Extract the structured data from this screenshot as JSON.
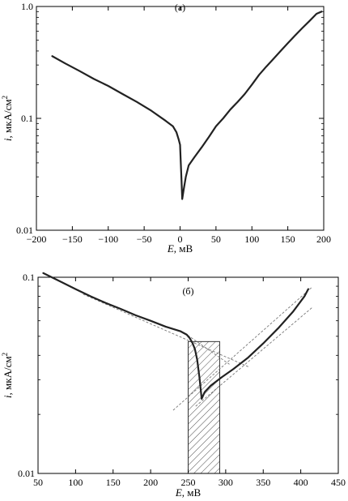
{
  "chart_data": [
    {
      "type": "line",
      "panel_label": "(а)",
      "xlabel_var": "E",
      "xlabel_unit": ", мВ",
      "ylabel_var": "i",
      "ylabel_unit": ", мкА/см",
      "ylabel_sup": "2",
      "y_scale": "log",
      "xlim": [
        -200,
        200
      ],
      "ylim": [
        0.01,
        1.0
      ],
      "x_ticks": [
        -200,
        -150,
        -100,
        -50,
        0,
        50,
        100,
        150,
        200
      ],
      "x_tick_labels": [
        "−200",
        "−150",
        "−100",
        "−50",
        "0",
        "50",
        "100",
        "150",
        "200"
      ],
      "y_ticks": [
        0.01,
        0.1,
        1.0
      ],
      "y_tick_labels": [
        "0.01",
        "0.1",
        "1.0"
      ],
      "series": [
        {
          "color": "#222222",
          "points": [
            [
              -178,
              0.36
            ],
            [
              -160,
              0.31
            ],
            [
              -140,
              0.265
            ],
            [
              -120,
              0.225
            ],
            [
              -100,
              0.195
            ],
            [
              -80,
              0.165
            ],
            [
              -60,
              0.14
            ],
            [
              -40,
              0.117
            ],
            [
              -20,
              0.095
            ],
            [
              -10,
              0.085
            ],
            [
              -5,
              0.075
            ],
            [
              -2,
              0.065
            ],
            [
              0,
              0.058
            ],
            [
              1,
              0.04
            ],
            [
              2,
              0.028
            ],
            [
              3,
              0.019
            ],
            [
              5,
              0.023
            ],
            [
              8,
              0.03
            ],
            [
              12,
              0.038
            ],
            [
              20,
              0.045
            ],
            [
              30,
              0.055
            ],
            [
              40,
              0.068
            ],
            [
              50,
              0.085
            ],
            [
              60,
              0.1
            ],
            [
              70,
              0.12
            ],
            [
              80,
              0.14
            ],
            [
              90,
              0.165
            ],
            [
              100,
              0.2
            ],
            [
              110,
              0.245
            ],
            [
              120,
              0.29
            ],
            [
              130,
              0.34
            ],
            [
              140,
              0.4
            ],
            [
              150,
              0.47
            ],
            [
              160,
              0.55
            ],
            [
              170,
              0.64
            ],
            [
              180,
              0.74
            ],
            [
              190,
              0.86
            ],
            [
              197,
              0.9
            ]
          ]
        }
      ]
    },
    {
      "type": "line",
      "panel_label": "(б)",
      "xlabel_var": "E",
      "xlabel_unit": ", мВ",
      "ylabel_var": "i",
      "ylabel_unit": ", мкА/см",
      "ylabel_sup": "2",
      "y_scale": "log",
      "xlim": [
        50,
        450
      ],
      "ylim": [
        0.01,
        0.1
      ],
      "x_ticks": [
        50,
        100,
        150,
        200,
        250,
        300,
        350,
        400,
        450
      ],
      "x_tick_labels": [
        "50",
        "100",
        "150",
        "200",
        "250",
        "300",
        "350",
        "400",
        "450"
      ],
      "y_ticks": [
        0.01,
        0.1
      ],
      "y_tick_labels": [
        "0.01",
        "0.1"
      ],
      "series": [
        {
          "color": "#222222",
          "points": [
            [
              57,
              0.105
            ],
            [
              80,
              0.095
            ],
            [
              100,
              0.087
            ],
            [
              120,
              0.08
            ],
            [
              140,
              0.074
            ],
            [
              160,
              0.069
            ],
            [
              180,
              0.064
            ],
            [
              200,
              0.06
            ],
            [
              220,
              0.056
            ],
            [
              240,
              0.053
            ],
            [
              248,
              0.051
            ],
            [
              252,
              0.049
            ],
            [
              256,
              0.046
            ],
            [
              259,
              0.043
            ],
            [
              262,
              0.038
            ],
            [
              265,
              0.031
            ],
            [
              268,
              0.024
            ],
            [
              272,
              0.026
            ],
            [
              280,
              0.028
            ],
            [
              295,
              0.031
            ],
            [
              310,
              0.034
            ],
            [
              330,
              0.039
            ],
            [
              350,
              0.046
            ],
            [
              370,
              0.055
            ],
            [
              390,
              0.067
            ],
            [
              405,
              0.08
            ],
            [
              410,
              0.087
            ]
          ]
        }
      ],
      "tangent_lines": [
        {
          "from": [
            110,
            0.082
          ],
          "to": [
            330,
            0.035
          ]
        },
        {
          "from": [
            230,
            0.021
          ],
          "to": [
            415,
            0.089
          ]
        },
        {
          "from": [
            245,
            0.052
          ],
          "to": [
            305,
            0.036
          ]
        },
        {
          "from": [
            260,
            0.022
          ],
          "to": [
            415,
            0.07
          ]
        }
      ],
      "hatched_region": {
        "x": [
          250,
          292
        ],
        "y": [
          0.01,
          0.047
        ]
      }
    }
  ]
}
